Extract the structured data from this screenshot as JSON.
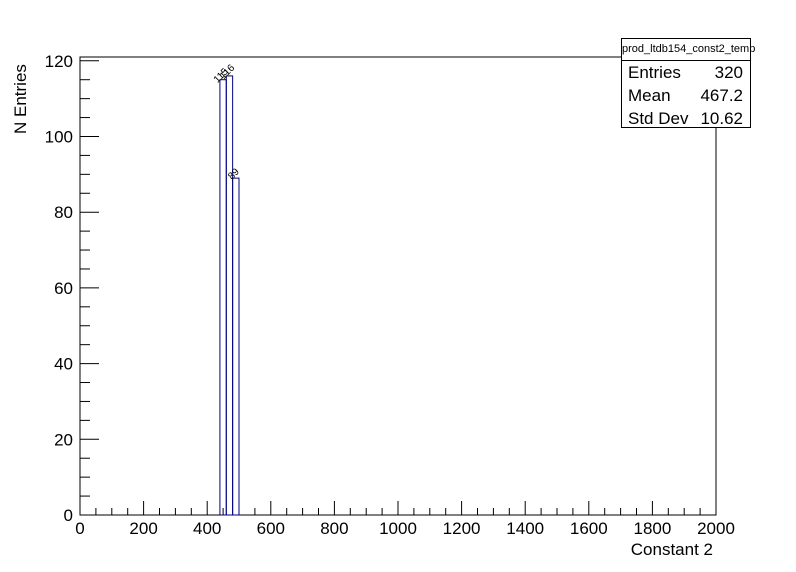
{
  "chart_data": {
    "type": "bar",
    "style": "step-histogram",
    "xlabel": "Constant 2",
    "ylabel": "N Entries",
    "xlim": [
      0,
      2000
    ],
    "ylim": [
      0,
      121
    ],
    "x_ticks": [
      0,
      200,
      400,
      600,
      800,
      1000,
      1200,
      1400,
      1600,
      1800,
      2000
    ],
    "y_ticks": [
      0,
      20,
      40,
      60,
      80,
      100,
      120
    ],
    "bin_width": 20,
    "bins": [
      {
        "x_low": 440,
        "x_high": 460,
        "value": 115,
        "label": "115"
      },
      {
        "x_low": 460,
        "x_high": 480,
        "value": 116,
        "label": "116"
      },
      {
        "x_low": 480,
        "x_high": 500,
        "value": 89,
        "label": "89"
      }
    ],
    "line_color": "#000080",
    "grid": false,
    "stats_box": {
      "title": "prod_ltdb154_const2_temp",
      "rows": [
        {
          "label": "Entries",
          "value": "320"
        },
        {
          "label": "Mean",
          "value": "467.2"
        },
        {
          "label": "Std Dev",
          "value": "10.62"
        }
      ]
    }
  }
}
